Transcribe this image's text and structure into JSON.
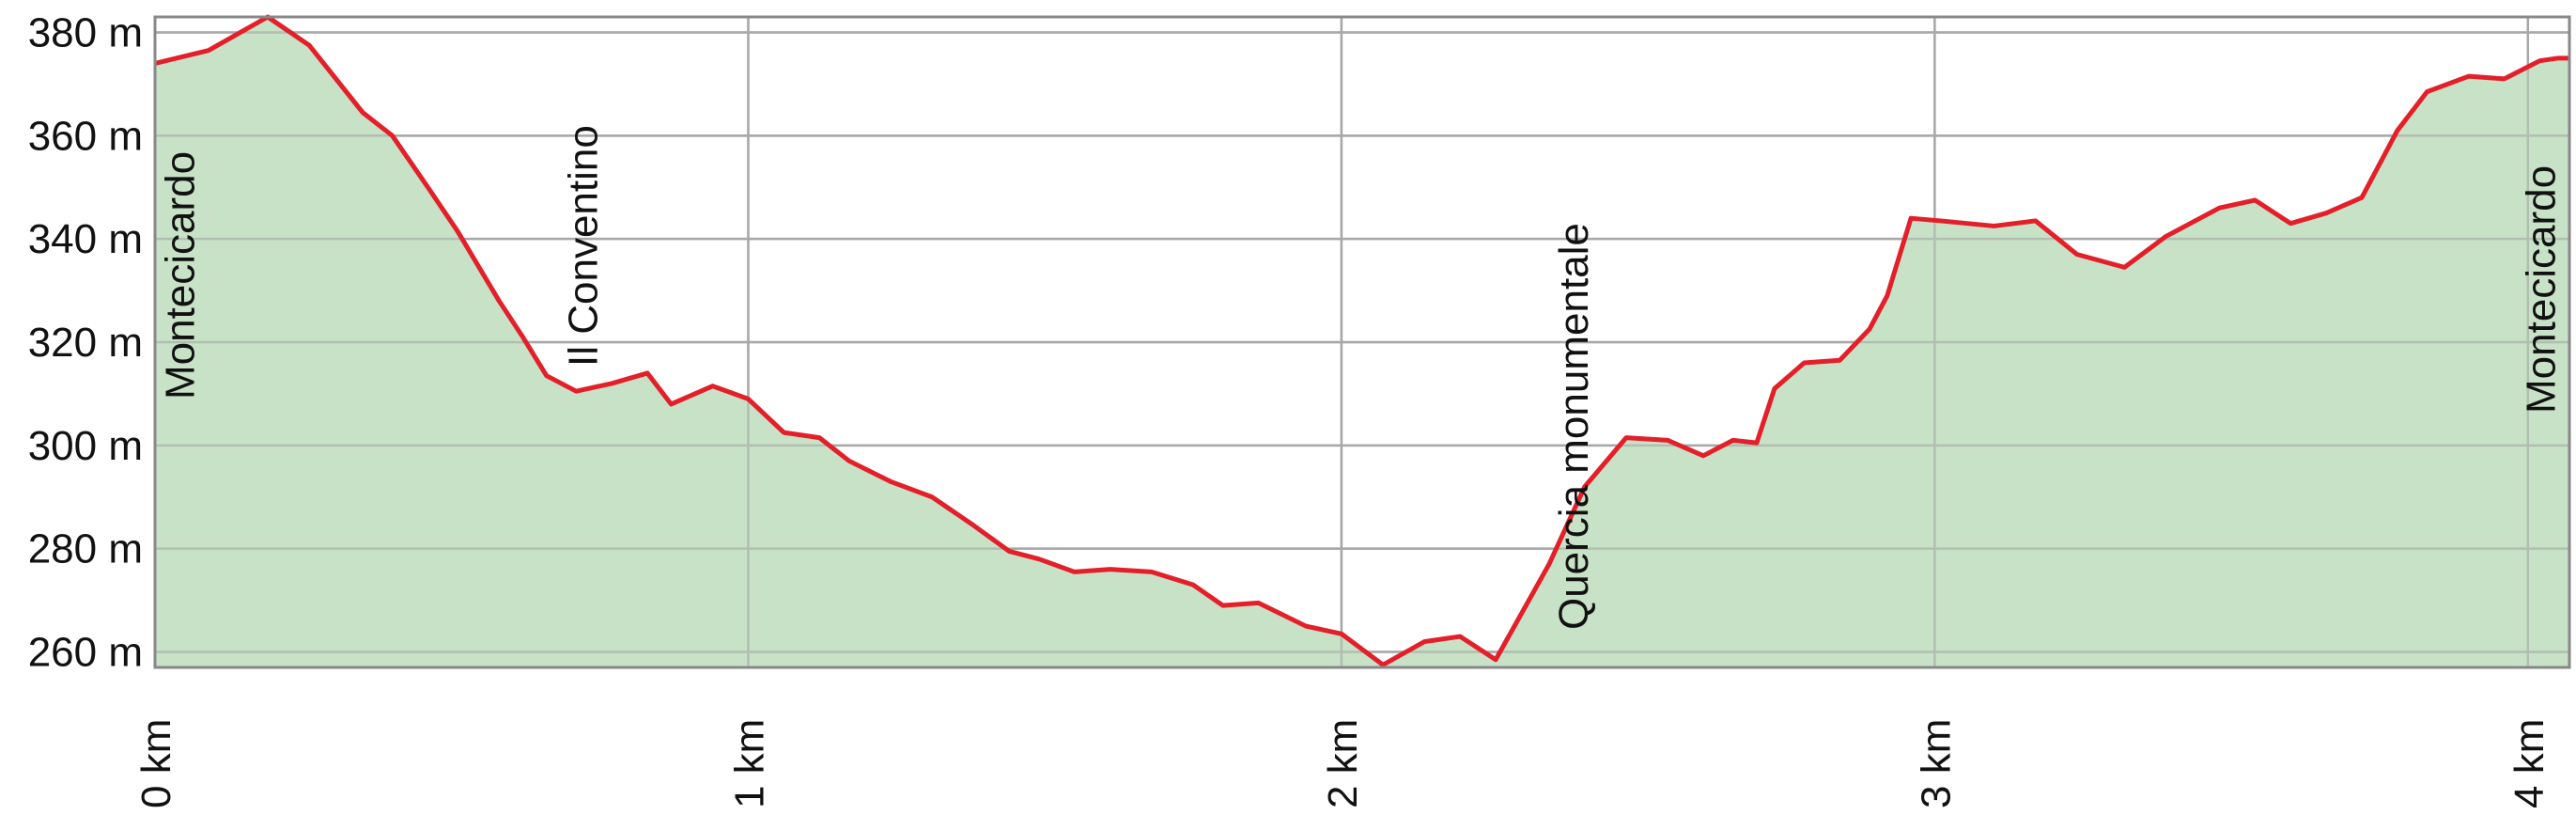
{
  "chart_data": {
    "type": "area",
    "title": "",
    "xlabel": "",
    "ylabel": "",
    "xlim": [
      0,
      4.07
    ],
    "ylim": [
      257,
      383
    ],
    "x_unit": "km",
    "y_unit": "m",
    "grid": true,
    "x_ticks": [
      0,
      1,
      2,
      3,
      4
    ],
    "x_tick_labels": [
      "0 km",
      "1 km",
      "2 km",
      "3 km",
      "4 km"
    ],
    "y_ticks": [
      260,
      280,
      300,
      320,
      340,
      360,
      380
    ],
    "y_tick_labels": [
      "260 m",
      "280 m",
      "300 m",
      "320 m",
      "340 m",
      "360 m",
      "380 m"
    ],
    "colors": {
      "line": "#e3202a",
      "fill": "#c2dfc2",
      "grid": "#a8a8a8",
      "axis": "#888888"
    },
    "series": [
      {
        "x": [
          0.0,
          0.09,
          0.19,
          0.26,
          0.35,
          0.4,
          0.46,
          0.51,
          0.58,
          0.62,
          0.66,
          0.71,
          0.77,
          0.83,
          0.87,
          0.94,
          1.0,
          1.06,
          1.12,
          1.17,
          1.24,
          1.31,
          1.38,
          1.44,
          1.49,
          1.55,
          1.61,
          1.68,
          1.75,
          1.8,
          1.86,
          1.94,
          2.0,
          2.07,
          2.14,
          2.2,
          2.26,
          2.35,
          2.41,
          2.48,
          2.55,
          2.61,
          2.66,
          2.7,
          2.73,
          2.78,
          2.84,
          2.89,
          2.92,
          2.96,
          3.01,
          3.1,
          3.17,
          3.24,
          3.32,
          3.39,
          3.48,
          3.54,
          3.6,
          3.66,
          3.72,
          3.78,
          3.83,
          3.9,
          3.96,
          4.02,
          4.05,
          4.07
        ],
        "y": [
          374.0,
          376.5,
          383.0,
          377.5,
          364.5,
          360.0,
          350.0,
          341.5,
          328.0,
          321.0,
          313.5,
          310.5,
          312.0,
          314.0,
          308.0,
          311.5,
          309.0,
          302.5,
          301.5,
          297.0,
          293.0,
          290.0,
          284.5,
          279.5,
          278.0,
          275.5,
          276.0,
          275.5,
          273.0,
          269.0,
          269.5,
          265.0,
          263.5,
          257.5,
          262.0,
          263.0,
          258.5,
          277.0,
          292.0,
          301.5,
          301.0,
          298.0,
          301.0,
          300.5,
          311.0,
          316.0,
          316.5,
          322.5,
          329.0,
          344.0,
          343.5,
          342.5,
          343.5,
          337.0,
          334.5,
          340.5,
          346.0,
          347.5,
          343.0,
          345.0,
          348.0,
          361.0,
          368.5,
          371.5,
          371.0,
          374.5,
          375.0,
          375.0
        ]
      }
    ],
    "annotations": [
      {
        "x": 0.04,
        "label": "Montecicardo"
      },
      {
        "x": 0.72,
        "label": "Il Conventino"
      },
      {
        "x": 2.39,
        "label": "Quercia monumentale"
      },
      {
        "x": 4.02,
        "label": "Montecicardo"
      }
    ]
  }
}
